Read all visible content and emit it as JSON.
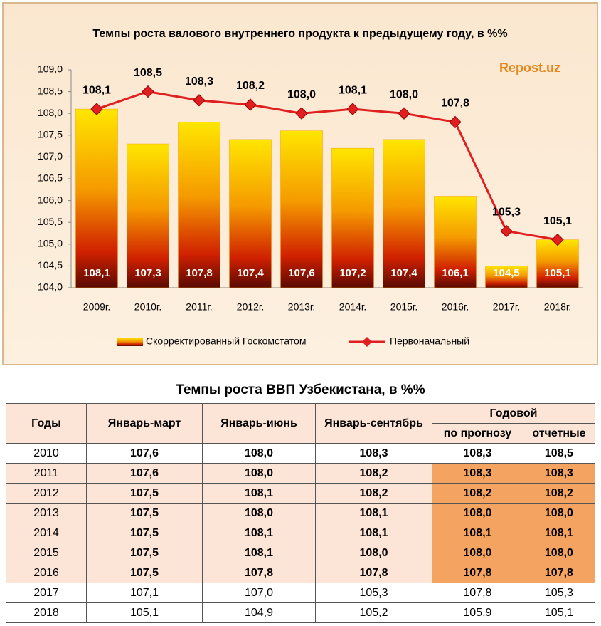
{
  "chart_data": {
    "type": "bar-line",
    "title": "Темпы роста валового внутреннего продукта к предыдущему году, в %%",
    "watermark": "Repost.uz",
    "categories": [
      "2009г.",
      "2010г.",
      "2011г.",
      "2012г.",
      "2013г.",
      "2014г.",
      "2015г.",
      "2016г.",
      "2017г.",
      "2018г."
    ],
    "series": [
      {
        "name": "Скорректированный Госкомстатом",
        "type": "bar",
        "color": "#f5a000",
        "values": [
          108.1,
          107.3,
          107.8,
          107.4,
          107.6,
          107.2,
          107.4,
          106.1,
          104.5,
          105.1
        ],
        "value_labels": [
          "108,1",
          "107,3",
          "107,8",
          "107,4",
          "107,6",
          "107,2",
          "107,4",
          "106,1",
          "104,5",
          "105,1"
        ]
      },
      {
        "name": "Первоначальный",
        "type": "line",
        "color": "#e02020",
        "values": [
          108.1,
          108.5,
          108.3,
          108.2,
          108.0,
          108.1,
          108.0,
          107.8,
          105.3,
          105.1
        ],
        "value_labels": [
          "108,1",
          "108,5",
          "108,3",
          "108,2",
          "108,0",
          "108,1",
          "108,0",
          "107,8",
          "105,3",
          "105,1"
        ]
      }
    ],
    "ylim": [
      104,
      109
    ],
    "yticks": [
      {
        "value": 104,
        "label": "104,0"
      },
      {
        "value": 104.5,
        "label": "104,5"
      },
      {
        "value": 105,
        "label": "105,0"
      },
      {
        "value": 105.5,
        "label": "105,5"
      },
      {
        "value": 106,
        "label": "106,0"
      },
      {
        "value": 106.5,
        "label": "106,5"
      },
      {
        "value": 107,
        "label": "107,0"
      },
      {
        "value": 107.5,
        "label": "107,5"
      },
      {
        "value": 108,
        "label": "108,0"
      },
      {
        "value": 108.5,
        "label": "108,5"
      },
      {
        "value": 109,
        "label": "109,0"
      }
    ],
    "legend": "bottom"
  },
  "table": {
    "title": "Темпы роста ВВП Узбекистана, в %%",
    "header": {
      "row1": [
        "Годы",
        "Январь-март",
        "Январь-июнь",
        "Январь-сентябрь",
        "Годовой"
      ],
      "row2": [
        "по прогнозу",
        "отчетные"
      ]
    },
    "rows": [
      [
        "2010",
        "107,6",
        "108,0",
        "108,3",
        "108,3",
        "108,5"
      ],
      [
        "2011",
        "107,6",
        "108,0",
        "108,2",
        "108,3",
        "108,3"
      ],
      [
        "2012",
        "107,5",
        "108,1",
        "108,2",
        "108,2",
        "108,2"
      ],
      [
        "2013",
        "107,5",
        "108,0",
        "108,1",
        "108,0",
        "108,0"
      ],
      [
        "2014",
        "107,5",
        "108,1",
        "108,1",
        "108,1",
        "108,1"
      ],
      [
        "2015",
        "107,5",
        "108,1",
        "108,0",
        "108,0",
        "108,0"
      ],
      [
        "2016",
        "107,5",
        "107,8",
        "107,8",
        "107,8",
        "107,8"
      ],
      [
        "2017",
        "107,1",
        "107,0",
        "105,3",
        "107,8",
        "105,3"
      ],
      [
        "2018",
        "105,1",
        "104,9",
        "105,2",
        "105,9",
        "105,1"
      ]
    ]
  }
}
